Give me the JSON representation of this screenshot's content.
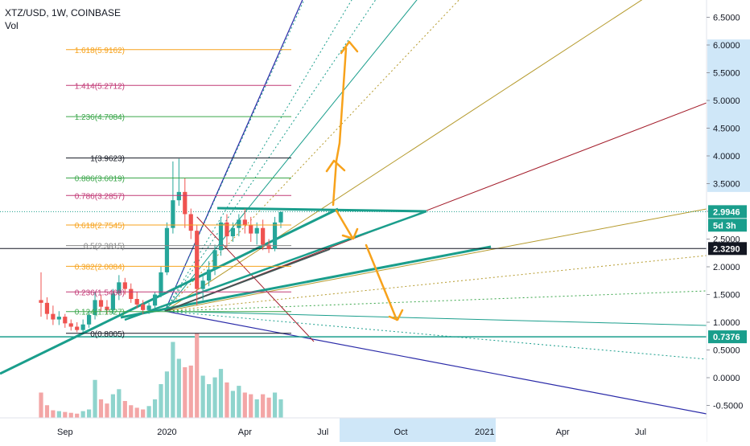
{
  "header": {
    "title": "XTZ/USD, 1W, COINBASE",
    "volume_label": "Vol"
  },
  "colors": {
    "up": "#26a69a",
    "down": "#ef5350",
    "vol_up": "#8fd4cd",
    "vol_down": "#f3a6a6",
    "teal": "#1a9e8c",
    "orange": "#f7a21b",
    "navy": "#2a2aa8",
    "darkred": "#a31c2a",
    "green": "#3aa64a",
    "pink": "#c23a77",
    "olive": "#b59a2c"
  },
  "chart_data": {
    "type": "candlestick",
    "title": "XTZ/USD, 1W, COINBASE",
    "xlabel": "",
    "ylabel": "",
    "ylim": [
      -0.75,
      6.85
    ],
    "grid": false,
    "x_tick_labels": [
      "Sep",
      "2020",
      "Apr",
      "Jul",
      "Oct",
      "2021",
      "Apr",
      "Jul"
    ],
    "x_tick_weeks": [
      4,
      21,
      34,
      47,
      60,
      74,
      87,
      100
    ],
    "highlighted_x_range_labels": [
      "Oct",
      "2021"
    ],
    "y_tick_labels": [
      "6.5000",
      "6.0000",
      "5.5000",
      "5.0000",
      "4.5000",
      "4.0000",
      "3.5000",
      "3.0000",
      "2.5000",
      "2.0000",
      "1.5000",
      "1.0000",
      "0.5000",
      "0.0000",
      "-0.5000"
    ],
    "y_tick_values": [
      6.5,
      6.0,
      5.5,
      5.0,
      4.5,
      4.0,
      3.5,
      3.0,
      2.5,
      2.0,
      1.5,
      1.0,
      0.5,
      0.0,
      -0.5
    ],
    "price_badges": [
      {
        "label": "6.0000",
        "value": 6.0,
        "style": "highlight"
      },
      {
        "label": "5.5000",
        "value": 5.5,
        "style": "highlight"
      },
      {
        "label": "5.0000",
        "value": 5.0,
        "style": "highlight"
      },
      {
        "label": "4.5000",
        "value": 4.5,
        "style": "highlight"
      },
      {
        "label": "4.0000",
        "value": 4.0,
        "style": "highlight"
      },
      {
        "label": "3.5000",
        "value": 3.5,
        "style": "highlight"
      },
      {
        "label": "2.9946",
        "value": 2.9946,
        "style": "teal"
      },
      {
        "label": "5d 3h",
        "value": 2.75,
        "style": "teal"
      },
      {
        "label": "2.3290",
        "value": 2.329,
        "style": "black"
      },
      {
        "label": "0.7376",
        "value": 0.7376,
        "style": "teal"
      }
    ],
    "fib_levels": [
      {
        "label": "1.618(5.9162)",
        "value": 5.9162,
        "color": "#f7a21b"
      },
      {
        "label": "1.414(5.2712)",
        "value": 5.2712,
        "color": "#c23a77"
      },
      {
        "label": "1.236(4.7084)",
        "value": 4.7084,
        "color": "#3aa64a"
      },
      {
        "label": "1(3.9623)",
        "value": 3.9623,
        "color": "#131722"
      },
      {
        "label": "0.886(3.6019)",
        "value": 3.6019,
        "color": "#3aa64a"
      },
      {
        "label": "0.786(3.2857)",
        "value": 3.2857,
        "color": "#c23a77"
      },
      {
        "label": "0.618(2.7545)",
        "value": 2.7545,
        "color": "#f7a21b"
      },
      {
        "label": "0.5(2.3815)",
        "value": 2.3815,
        "color": "#888888"
      },
      {
        "label": "0.382(2.0084)",
        "value": 2.0084,
        "color": "#f7a21b"
      },
      {
        "label": "0.236(1.5468)",
        "value": 1.5468,
        "color": "#c23a77"
      },
      {
        "label": "0.124(1.1927)",
        "value": 1.1927,
        "color": "#3aa64a"
      },
      {
        "label": "0(0.8005)",
        "value": 0.8005,
        "color": "#131722"
      }
    ],
    "candles": [
      {
        "w": 0,
        "o": 1.4,
        "h": 1.9,
        "l": 1.1,
        "c": 1.35
      },
      {
        "w": 1,
        "o": 1.35,
        "h": 1.45,
        "l": 1.05,
        "c": 1.15
      },
      {
        "w": 2,
        "o": 1.15,
        "h": 1.3,
        "l": 0.95,
        "c": 1.05
      },
      {
        "w": 3,
        "o": 1.05,
        "h": 1.2,
        "l": 0.95,
        "c": 1.1
      },
      {
        "w": 4,
        "o": 1.1,
        "h": 1.15,
        "l": 0.9,
        "c": 0.98
      },
      {
        "w": 5,
        "o": 0.98,
        "h": 1.05,
        "l": 0.85,
        "c": 0.92
      },
      {
        "w": 6,
        "o": 0.92,
        "h": 1.0,
        "l": 0.82,
        "c": 0.86
      },
      {
        "w": 7,
        "o": 0.86,
        "h": 1.05,
        "l": 0.8,
        "c": 0.96
      },
      {
        "w": 8,
        "o": 0.96,
        "h": 1.2,
        "l": 0.9,
        "c": 1.13
      },
      {
        "w": 9,
        "o": 1.13,
        "h": 1.55,
        "l": 1.05,
        "c": 1.4
      },
      {
        "w": 10,
        "o": 1.4,
        "h": 1.5,
        "l": 1.2,
        "c": 1.28
      },
      {
        "w": 11,
        "o": 1.28,
        "h": 1.4,
        "l": 1.15,
        "c": 1.22
      },
      {
        "w": 12,
        "o": 1.22,
        "h": 1.6,
        "l": 1.15,
        "c": 1.52
      },
      {
        "w": 13,
        "o": 1.52,
        "h": 1.85,
        "l": 1.4,
        "c": 1.72
      },
      {
        "w": 14,
        "o": 1.72,
        "h": 1.8,
        "l": 1.5,
        "c": 1.6
      },
      {
        "w": 15,
        "o": 1.6,
        "h": 1.7,
        "l": 1.35,
        "c": 1.42
      },
      {
        "w": 16,
        "o": 1.42,
        "h": 1.55,
        "l": 1.25,
        "c": 1.32
      },
      {
        "w": 17,
        "o": 1.32,
        "h": 1.4,
        "l": 1.15,
        "c": 1.22
      },
      {
        "w": 18,
        "o": 1.22,
        "h": 1.35,
        "l": 1.15,
        "c": 1.3
      },
      {
        "w": 19,
        "o": 1.3,
        "h": 1.55,
        "l": 1.25,
        "c": 1.5
      },
      {
        "w": 20,
        "o": 1.5,
        "h": 2.0,
        "l": 1.45,
        "c": 1.9
      },
      {
        "w": 21,
        "o": 1.9,
        "h": 2.8,
        "l": 1.85,
        "c": 2.7
      },
      {
        "w": 22,
        "o": 2.7,
        "h": 3.9,
        "l": 2.6,
        "c": 3.2
      },
      {
        "w": 23,
        "o": 3.2,
        "h": 3.95,
        "l": 3.1,
        "c": 3.35
      },
      {
        "w": 24,
        "o": 3.35,
        "h": 3.6,
        "l": 2.7,
        "c": 2.95
      },
      {
        "w": 25,
        "o": 2.95,
        "h": 3.05,
        "l": 2.5,
        "c": 2.65
      },
      {
        "w": 26,
        "o": 2.65,
        "h": 2.75,
        "l": 1.3,
        "c": 1.6
      },
      {
        "w": 27,
        "o": 1.6,
        "h": 1.85,
        "l": 1.4,
        "c": 1.75
      },
      {
        "w": 28,
        "o": 1.75,
        "h": 2.1,
        "l": 1.65,
        "c": 1.95
      },
      {
        "w": 29,
        "o": 1.95,
        "h": 2.4,
        "l": 1.85,
        "c": 2.3
      },
      {
        "w": 30,
        "o": 2.3,
        "h": 2.9,
        "l": 2.2,
        "c": 2.8
      },
      {
        "w": 31,
        "o": 2.8,
        "h": 2.95,
        "l": 2.35,
        "c": 2.55
      },
      {
        "w": 32,
        "o": 2.55,
        "h": 2.8,
        "l": 2.45,
        "c": 2.7
      },
      {
        "w": 33,
        "o": 2.7,
        "h": 2.95,
        "l": 2.55,
        "c": 2.85
      },
      {
        "w": 34,
        "o": 2.85,
        "h": 3.05,
        "l": 2.6,
        "c": 2.75
      },
      {
        "w": 35,
        "o": 2.75,
        "h": 2.9,
        "l": 2.45,
        "c": 2.6
      },
      {
        "w": 36,
        "o": 2.6,
        "h": 2.8,
        "l": 2.4,
        "c": 2.7
      },
      {
        "w": 37,
        "o": 2.7,
        "h": 2.85,
        "l": 2.3,
        "c": 2.4
      },
      {
        "w": 38,
        "o": 2.4,
        "h": 2.5,
        "l": 2.25,
        "c": 2.32
      },
      {
        "w": 39,
        "o": 2.32,
        "h": 2.9,
        "l": 2.28,
        "c": 2.8
      },
      {
        "w": 40,
        "o": 2.8,
        "h": 3.0,
        "l": 2.7,
        "c": 2.99
      }
    ],
    "volume": [
      0.3,
      0.15,
      0.09,
      0.08,
      0.07,
      0.06,
      0.05,
      0.08,
      0.1,
      0.45,
      0.22,
      0.17,
      0.28,
      0.34,
      0.2,
      0.15,
      0.12,
      0.1,
      0.14,
      0.22,
      0.4,
      0.55,
      0.9,
      0.7,
      0.6,
      0.62,
      1.0,
      0.5,
      0.4,
      0.48,
      0.58,
      0.42,
      0.32,
      0.38,
      0.3,
      0.28,
      0.22,
      0.28,
      0.24,
      0.3,
      0.22
    ],
    "volume_up": [
      false,
      false,
      false,
      true,
      false,
      false,
      false,
      true,
      true,
      true,
      false,
      false,
      true,
      true,
      false,
      false,
      false,
      false,
      true,
      true,
      true,
      true,
      true,
      true,
      false,
      false,
      false,
      true,
      true,
      true,
      true,
      false,
      true,
      true,
      false,
      false,
      true,
      false,
      false,
      true,
      true
    ]
  }
}
